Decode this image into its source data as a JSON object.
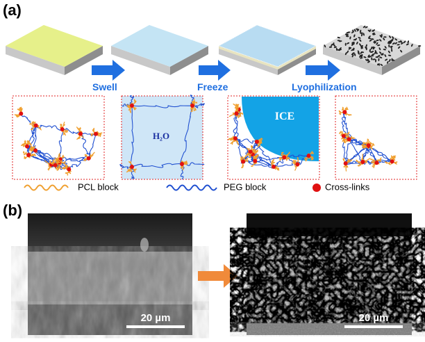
{
  "panel_a": {
    "label": "(a)",
    "steps": [
      "Swell",
      "Freeze",
      "Lyophilization"
    ],
    "water": "H₂O",
    "ice": "ICE",
    "legend": [
      "PCL block",
      "PEG block",
      "Cross-links"
    ]
  },
  "panel_b": {
    "label": "(b)",
    "scale_bars": [
      "20 µm",
      "20 µm"
    ]
  }
}
